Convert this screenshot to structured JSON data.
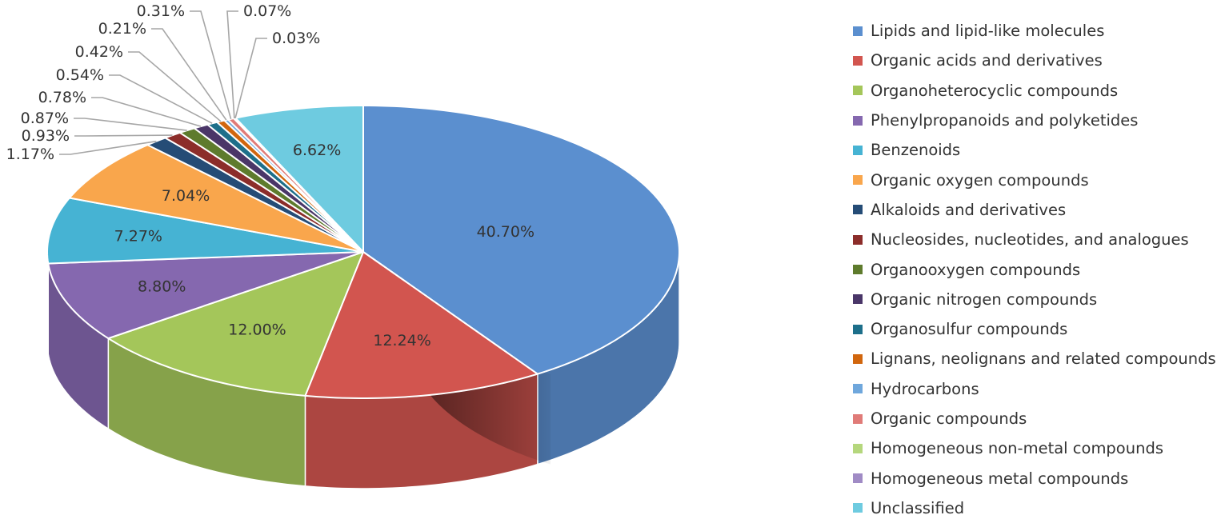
{
  "chart_data": {
    "type": "pie",
    "title": "",
    "style": "3d",
    "legend_position": "right",
    "categories": [
      "Lipids and lipid-like molecules",
      "Organic acids and derivatives",
      "Organoheterocyclic compounds",
      "Phenylpropanoids and polyketides",
      "Benzenoids",
      "Organic oxygen compounds",
      "Alkaloids and derivatives",
      "Nucleosides, nucleotides, and analogues",
      "Organooxygen compounds",
      "Organic nitrogen compounds",
      "Organosulfur compounds",
      "Lignans, neolignans and related compounds",
      "Hydrocarbons",
      "Organic compounds",
      "Homogeneous non-metal compounds",
      "Homogeneous metal compounds",
      "Unclassified"
    ],
    "values": [
      40.7,
      12.24,
      12.0,
      8.8,
      7.27,
      7.04,
      1.17,
      0.93,
      0.87,
      0.78,
      0.54,
      0.42,
      0.21,
      0.31,
      0.07,
      0.03,
      6.62
    ],
    "labels": [
      "40.70%",
      "12.24%",
      "12.00%",
      "8.80%",
      "7.27%",
      "7.04%",
      "1.17%",
      "0.93%",
      "0.87%",
      "0.78%",
      "0.54%",
      "0.42%",
      "0.21%",
      "0.31%",
      "0.07%",
      "0.03%",
      "6.62%"
    ],
    "colors": [
      "#5B8FCF",
      "#D2554F",
      "#A4C65A",
      "#8568AF",
      "#46B3D3",
      "#F9A64C",
      "#254C76",
      "#8C2D2A",
      "#5E7B2D",
      "#4A3668",
      "#1D6F8A",
      "#D1660E",
      "#6FA7DC",
      "#E07B78",
      "#B5D77D",
      "#A08BC5",
      "#6ECBE0"
    ]
  }
}
